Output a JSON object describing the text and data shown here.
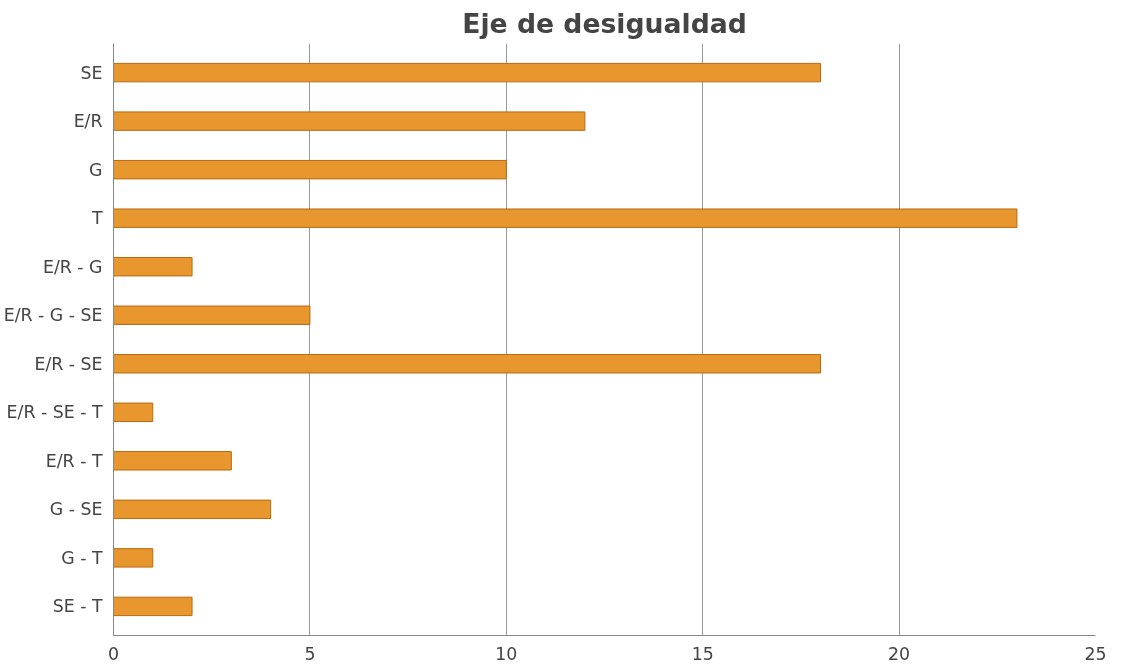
{
  "chart_data": {
    "type": "bar",
    "orientation": "horizontal",
    "title": "Eje de desigualdad",
    "categories": [
      "SE",
      "E/R",
      "G",
      "T",
      "E/R - G",
      "E/R - G - SE",
      "E/R - SE",
      "E/R - SE - T",
      "E/R - T",
      "G - SE",
      "G - T",
      "SE - T"
    ],
    "values": [
      18,
      12,
      10,
      23,
      2,
      5,
      18,
      1,
      3,
      4,
      1,
      2
    ],
    "color": "#e8962e",
    "xlim": [
      0,
      25
    ],
    "xticks": [
      0,
      5,
      10,
      15,
      20,
      25
    ],
    "grid": "x"
  }
}
